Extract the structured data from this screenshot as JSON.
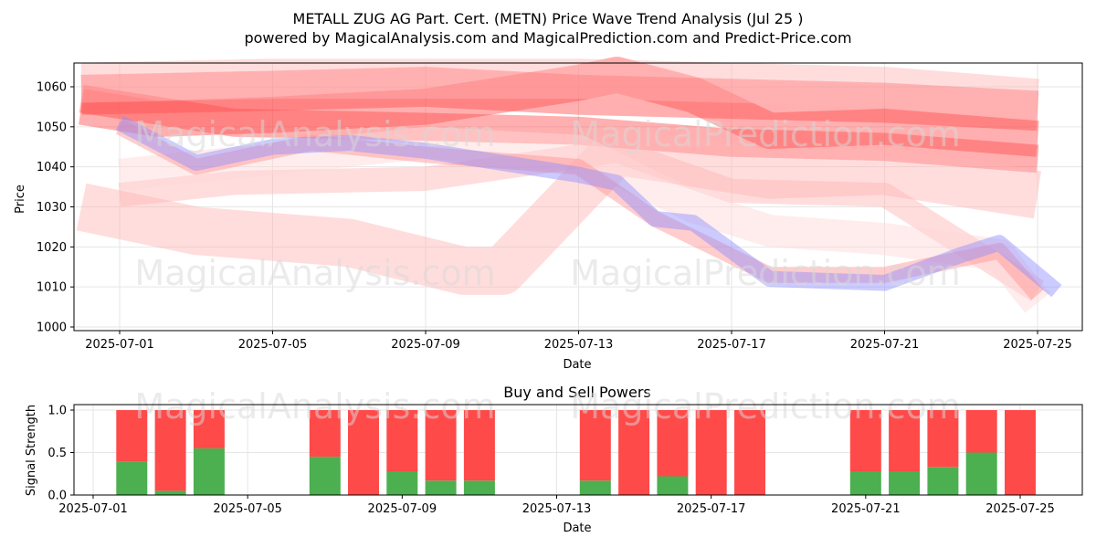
{
  "header": {
    "title": "METALL ZUG AG Part. Cert. (METN) Price Wave Trend Analysis (Jul 25 )",
    "subtitle": "powered by MagicalAnalysis.com and MagicalPrediction.com and Predict-Price.com"
  },
  "watermarks": [
    "MagicalAnalysis.com",
    "MagicalPrediction.com"
  ],
  "colors": {
    "red_band": "#ff4d4d",
    "pink_band": "#ffb3b3",
    "blue_band": "#8c8cff",
    "buy": "#4caf50",
    "sell": "#ff4a4a"
  },
  "chart_data": [
    {
      "type": "area",
      "title": "",
      "xlabel": "Date",
      "ylabel": "Price",
      "x_ticks": [
        "2025-07-01",
        "2025-07-05",
        "2025-07-09",
        "2025-07-13",
        "2025-07-17",
        "2025-07-21",
        "2025-07-25"
      ],
      "y_ticks": [
        1000,
        1010,
        1020,
        1030,
        1040,
        1050,
        1060
      ],
      "xlim": [
        "2025-06-29",
        "2025-07-26"
      ],
      "ylim": [
        999,
        1066
      ],
      "grid": true,
      "series": [
        {
          "color": "#ff4d4d",
          "width": 10,
          "points": [
            [
              "2025-06-30",
              1058
            ],
            [
              "2025-07-05",
              1059
            ],
            [
              "2025-07-09",
              1060
            ],
            [
              "2025-07-13",
              1058
            ],
            [
              "2025-07-17",
              1057
            ],
            [
              "2025-07-21",
              1056
            ],
            [
              "2025-07-25",
              1054
            ]
          ]
        },
        {
          "color": "#ff4d4d",
          "width": 7,
          "points": [
            [
              "2025-06-30",
              1057
            ],
            [
              "2025-07-04",
              1051
            ],
            [
              "2025-07-09",
              1050
            ],
            [
              "2025-07-13",
              1049
            ],
            [
              "2025-07-17",
              1046
            ],
            [
              "2025-07-21",
              1045
            ],
            [
              "2025-07-25",
              1042
            ]
          ]
        },
        {
          "color": "#ff4d4d",
          "width": 9,
          "points": [
            [
              "2025-06-30",
              1055
            ],
            [
              "2025-07-02",
              1052
            ],
            [
              "2025-07-05",
              1053
            ],
            [
              "2025-07-09",
              1055
            ],
            [
              "2025-07-13",
              1061
            ],
            [
              "2025-07-14",
              1063
            ],
            [
              "2025-07-16",
              1058
            ],
            [
              "2025-07-18",
              1049
            ],
            [
              "2025-07-21",
              1050
            ],
            [
              "2025-07-25",
              1047
            ]
          ]
        },
        {
          "color": "#ffb3b3",
          "width": 10,
          "points": [
            [
              "2025-06-30",
              1061
            ],
            [
              "2025-07-05",
              1062
            ],
            [
              "2025-07-09",
              1062
            ],
            [
              "2025-07-13",
              1062
            ],
            [
              "2025-07-17",
              1061
            ],
            [
              "2025-07-21",
              1060
            ],
            [
              "2025-07-25",
              1057
            ]
          ]
        },
        {
          "color": "#ffb3b3",
          "width": 12,
          "points": [
            [
              "2025-06-30",
              1030
            ],
            [
              "2025-07-03",
              1024
            ],
            [
              "2025-07-07",
              1021
            ],
            [
              "2025-07-10",
              1014
            ],
            [
              "2025-07-11",
              1014
            ],
            [
              "2025-07-13",
              1034
            ],
            [
              "2025-07-14",
              1044
            ],
            [
              "2025-07-18",
              1038
            ],
            [
              "2025-07-21",
              1039
            ],
            [
              "2025-07-25",
              1033
            ]
          ]
        },
        {
          "color": "#ffb3b3",
          "width": 6,
          "points": [
            [
              "2025-07-01",
              1033
            ],
            [
              "2025-07-04",
              1036
            ],
            [
              "2025-07-09",
              1037
            ],
            [
              "2025-07-14",
              1044
            ],
            [
              "2025-07-17",
              1034
            ],
            [
              "2025-07-21",
              1033
            ],
            [
              "2025-07-25",
              1009
            ]
          ]
        },
        {
          "color": "#ffd6d6",
          "width": 8,
          "points": [
            [
              "2025-07-01",
              1038
            ],
            [
              "2025-07-05",
              1042
            ],
            [
              "2025-07-09",
              1046
            ],
            [
              "2025-07-13",
              1044
            ],
            [
              "2025-07-16",
              1030
            ],
            [
              "2025-07-18",
              1024
            ],
            [
              "2025-07-21",
              1022
            ],
            [
              "2025-07-24",
              1018
            ],
            [
              "2025-07-25",
              1006
            ]
          ]
        },
        {
          "color": "#ff9090",
          "width": 4,
          "points": [
            [
              "2025-07-01",
              1050
            ],
            [
              "2025-07-03",
              1040
            ],
            [
              "2025-07-06",
              1046
            ],
            [
              "2025-07-09",
              1043
            ],
            [
              "2025-07-13",
              1040
            ],
            [
              "2025-07-15",
              1027
            ],
            [
              "2025-07-18",
              1013
            ],
            [
              "2025-07-21",
              1013
            ],
            [
              "2025-07-24",
              1019
            ],
            [
              "2025-07-25",
              1008
            ]
          ]
        },
        {
          "color": "#8c8cff",
          "width": 4,
          "points": [
            [
              "2025-07-01",
              1051
            ],
            [
              "2025-07-03",
              1041
            ],
            [
              "2025-07-05",
              1045
            ],
            [
              "2025-07-07",
              1046
            ],
            [
              "2025-07-09",
              1044
            ],
            [
              "2025-07-11",
              1041
            ],
            [
              "2025-07-13",
              1038
            ],
            [
              "2025-07-14",
              1036
            ],
            [
              "2025-07-15",
              1027
            ],
            [
              "2025-07-16",
              1026
            ],
            [
              "2025-07-18",
              1012
            ],
            [
              "2025-07-21",
              1011
            ],
            [
              "2025-07-23",
              1018
            ],
            [
              "2025-07-24",
              1021
            ],
            [
              "2025-07-25.5",
              1009
            ]
          ]
        }
      ]
    },
    {
      "type": "bar",
      "title": "Buy and Sell Powers",
      "xlabel": "Date",
      "ylabel": "Signal Strength",
      "x_ticks": [
        "2025-07-01",
        "2025-07-05",
        "2025-07-09",
        "2025-07-13",
        "2025-07-17",
        "2025-07-21",
        "2025-07-25"
      ],
      "y_ticks": [
        "0.0",
        "0.5",
        "1.0"
      ],
      "ylim": [
        0,
        1.05
      ],
      "categories": [
        "2025-07-02",
        "2025-07-03",
        "2025-07-04",
        "2025-07-07",
        "2025-07-08",
        "2025-07-09",
        "2025-07-10",
        "2025-07-11",
        "2025-07-14",
        "2025-07-15",
        "2025-07-16",
        "2025-07-17",
        "2025-07-18",
        "2025-07-21",
        "2025-07-22",
        "2025-07-23",
        "2025-07-24",
        "2025-07-25"
      ],
      "series": [
        {
          "name": "buy",
          "values": [
            0.39,
            0.05,
            0.55,
            0.45,
            0.0,
            0.28,
            0.17,
            0.17,
            0.17,
            0.0,
            0.22,
            0.0,
            0.0,
            0.28,
            0.28,
            0.33,
            0.5,
            0.0
          ]
        },
        {
          "name": "sell",
          "values": [
            0.61,
            0.95,
            0.45,
            0.55,
            1.0,
            0.72,
            0.83,
            0.83,
            0.83,
            1.0,
            0.78,
            1.0,
            1.0,
            0.72,
            0.72,
            0.67,
            0.5,
            1.0
          ]
        }
      ]
    }
  ]
}
